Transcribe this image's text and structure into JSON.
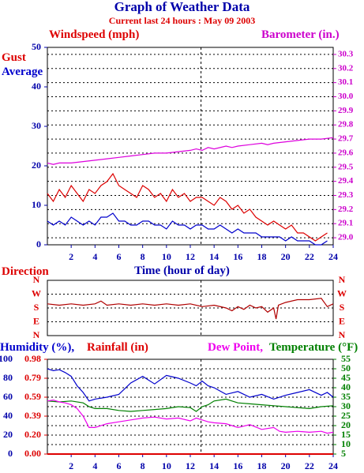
{
  "page": {
    "title": "Graph of Weather Data",
    "subtitle": "Current last 24 hours : May 09 2003"
  },
  "colors": {
    "wind_gust": "#dd0000",
    "wind_avg": "#0000cc",
    "barometer": "#dd00dd",
    "direction": "#b00000",
    "humidity": "#0000cc",
    "rainfall": "#dd0000",
    "dewpoint": "#ee00ee",
    "temperature": "#008000",
    "axis_blue": "#0000aa",
    "axis_red": "#dd0000",
    "axis_magenta": "#cc00cc",
    "axis_green": "#008000"
  },
  "chart_data": [
    {
      "type": "line",
      "name": "wind_barometer",
      "left_label": "Windspeed (mph)",
      "right_label": "Barometer (in.)",
      "legend": [
        "Gust",
        "Average"
      ],
      "xlabel": "Time (hour of day)",
      "xlim": [
        0,
        24
      ],
      "xticks": [
        "2",
        "4",
        "6",
        "8",
        "10",
        "12",
        "14",
        "16",
        "18",
        "20",
        "22",
        "24"
      ],
      "y_left_lim": [
        0,
        50
      ],
      "y_left_ticks": [
        "0",
        "10",
        "20",
        "30",
        "40",
        "50"
      ],
      "y_right_lim": [
        28.95,
        30.35
      ],
      "y_right_ticks": [
        "29.0",
        "29.1",
        "29.2",
        "29.3",
        "29.4",
        "29.5",
        "29.6",
        "29.7",
        "29.8",
        "29.9",
        "30.0",
        "30.1",
        "30.2",
        "30.3"
      ],
      "grid": true,
      "marker_hour": 12.9,
      "series": [
        {
          "name": "Gust",
          "axis": "left",
          "x": [
            0,
            0.5,
            1,
            1.5,
            2,
            2.5,
            3,
            3.5,
            4,
            4.5,
            5,
            5.5,
            6,
            6.5,
            7,
            7.5,
            8,
            8.5,
            9,
            9.5,
            10,
            10.5,
            11,
            11.5,
            12,
            12.5,
            13,
            13.5,
            14,
            14.5,
            15,
            15.5,
            16,
            16.5,
            17,
            17.5,
            18,
            18.5,
            19,
            19.5,
            20,
            20.5,
            21,
            21.5,
            22,
            22.5,
            23,
            23.5
          ],
          "y": [
            13,
            11,
            14,
            12,
            15,
            13,
            11,
            14,
            13,
            15,
            16,
            18,
            15,
            14,
            13,
            12,
            15,
            14,
            12,
            13,
            11,
            14,
            12,
            13,
            11,
            12,
            12,
            11,
            10,
            12,
            11,
            9,
            10,
            8,
            9,
            7,
            6,
            5,
            6,
            5,
            4,
            5,
            3,
            3,
            2,
            1,
            2,
            3
          ]
        },
        {
          "name": "Average",
          "axis": "left",
          "x": [
            0,
            0.5,
            1,
            1.5,
            2,
            2.5,
            3,
            3.5,
            4,
            4.5,
            5,
            5.5,
            6,
            6.5,
            7,
            7.5,
            8,
            8.5,
            9,
            9.5,
            10,
            10.5,
            11,
            11.5,
            12,
            12.5,
            13,
            13.5,
            14,
            14.5,
            15,
            15.5,
            16,
            16.5,
            17,
            17.5,
            18,
            18.5,
            19,
            19.5,
            20,
            20.5,
            21,
            21.5,
            22,
            22.5,
            23,
            23.5
          ],
          "y": [
            6,
            5,
            6,
            5,
            7,
            6,
            5,
            6,
            5,
            7,
            7,
            8,
            6,
            6,
            5,
            5,
            6,
            6,
            5,
            5,
            4,
            6,
            5,
            5,
            4,
            5,
            5,
            4,
            4,
            5,
            4,
            3,
            4,
            3,
            3,
            3,
            2,
            2,
            2,
            2,
            1,
            2,
            1,
            1,
            1,
            0,
            0,
            1
          ]
        },
        {
          "name": "Barometer",
          "axis": "right",
          "x": [
            0,
            0.5,
            1,
            2,
            3,
            4,
            5,
            6,
            7,
            8,
            9,
            10,
            11,
            12,
            12.5,
            13,
            13.5,
            14,
            15,
            15.5,
            16,
            17,
            18,
            18.5,
            19,
            20,
            21,
            22,
            23,
            24
          ],
          "y": [
            29.53,
            29.52,
            29.53,
            29.53,
            29.54,
            29.55,
            29.56,
            29.57,
            29.58,
            29.59,
            29.6,
            29.6,
            29.61,
            29.62,
            29.63,
            29.62,
            29.64,
            29.63,
            29.65,
            29.64,
            29.65,
            29.66,
            29.67,
            29.66,
            29.67,
            29.68,
            29.69,
            29.7,
            29.7,
            29.71
          ]
        }
      ]
    },
    {
      "type": "line",
      "name": "wind_direction",
      "label": "Direction",
      "xlim": [
        0,
        24
      ],
      "y_ticks": [
        "N",
        "W",
        "S",
        "E",
        "N"
      ],
      "y_values": [
        0,
        1,
        2,
        3,
        4
      ],
      "grid": true,
      "marker_hour": 12.9,
      "series": [
        {
          "name": "Direction",
          "x": [
            0,
            1,
            2,
            3,
            4,
            4.5,
            5,
            6,
            7,
            8,
            9,
            10,
            11,
            12,
            13,
            14,
            15,
            15.5,
            16,
            16.5,
            17,
            17.5,
            18,
            18.5,
            19,
            19.2,
            19.4,
            20,
            21,
            22,
            23,
            23.5,
            24
          ],
          "y": [
            1.7,
            1.8,
            1.7,
            1.8,
            1.7,
            1.5,
            1.8,
            1.7,
            1.8,
            1.7,
            1.8,
            1.7,
            1.8,
            1.7,
            1.9,
            1.8,
            2.0,
            2.2,
            1.9,
            2.1,
            1.8,
            2.0,
            1.9,
            2.3,
            2.0,
            2.8,
            1.8,
            1.6,
            1.4,
            1.4,
            1.3,
            1.9,
            1.7
          ]
        }
      ]
    },
    {
      "type": "line",
      "name": "humidity_rain_temp",
      "labels": {
        "humidity": "Humidity (%),",
        "rainfall": "Rainfall (in)",
        "dewpoint": "Dew Point,",
        "temperature": "Temperature (°F)"
      },
      "xlim": [
        0,
        24
      ],
      "xticks": [
        "2",
        "4",
        "6",
        "8",
        "10",
        "12",
        "14",
        "16",
        "18",
        "20",
        "22",
        "24"
      ],
      "humidity_lim": [
        0,
        100
      ],
      "humidity_ticks": [
        "0",
        "20",
        "40",
        "60",
        "80",
        "100"
      ],
      "rain_ticks": [
        "0.00",
        "0.20",
        "0.39",
        "0.59",
        "0.79",
        "0.98"
      ],
      "temp_lim": [
        5,
        55
      ],
      "temp_ticks": [
        "5",
        "10",
        "15",
        "20",
        "25",
        "30",
        "35",
        "40",
        "45",
        "50",
        "55"
      ],
      "grid": true,
      "marker_hour": 12.9,
      "series": [
        {
          "name": "Humidity",
          "axis": "left",
          "x": [
            0,
            0.5,
            1,
            1.5,
            2,
            2.5,
            3,
            3.5,
            4,
            5,
            6,
            7,
            8,
            9,
            10,
            11,
            12,
            12.5,
            13,
            13.5,
            14,
            15,
            16,
            17,
            18,
            19,
            20,
            21,
            22,
            23,
            23.5,
            24
          ],
          "y": [
            90,
            88,
            89,
            86,
            82,
            72,
            65,
            56,
            58,
            60,
            63,
            75,
            82,
            74,
            83,
            80,
            75,
            72,
            77,
            72,
            70,
            63,
            66,
            60,
            63,
            58,
            62,
            65,
            68,
            62,
            65,
            60
          ]
        },
        {
          "name": "Dew Point",
          "axis": "right",
          "x": [
            0,
            0.5,
            1,
            1.5,
            2,
            2.5,
            3,
            3.5,
            4,
            5,
            6,
            7,
            8,
            9,
            10,
            11,
            12,
            12.5,
            13,
            13.5,
            14,
            15,
            15.5,
            16,
            17,
            18,
            19,
            19.5,
            20,
            21,
            22,
            23,
            23.5,
            24
          ],
          "y": [
            33,
            33.5,
            32.5,
            32,
            31,
            29,
            25,
            19,
            19,
            21,
            22,
            23,
            24,
            24.5,
            23.5,
            24,
            22.5,
            24,
            23,
            22,
            21.5,
            21,
            20,
            19,
            20.5,
            18,
            19,
            17,
            16.5,
            17,
            16.5,
            17,
            16,
            16.5
          ]
        },
        {
          "name": "Temperature",
          "axis": "right",
          "x": [
            0,
            1,
            2,
            3,
            3.5,
            4,
            5,
            6,
            7,
            8,
            9,
            10,
            11,
            12,
            12.5,
            13,
            13.5,
            14,
            15,
            15.5,
            16,
            17,
            18,
            19,
            20,
            21,
            22,
            23,
            24
          ],
          "y": [
            33,
            32.5,
            33,
            32,
            30,
            29,
            29,
            28,
            27.5,
            28,
            28.5,
            29,
            30,
            29.5,
            27.5,
            30,
            31,
            33,
            34,
            33,
            32,
            31.5,
            31,
            30.5,
            30,
            29.5,
            29,
            30,
            30.5
          ]
        },
        {
          "name": "Rainfall",
          "axis": "left",
          "x": [
            0,
            24
          ],
          "y": [
            0,
            0
          ]
        }
      ]
    }
  ]
}
